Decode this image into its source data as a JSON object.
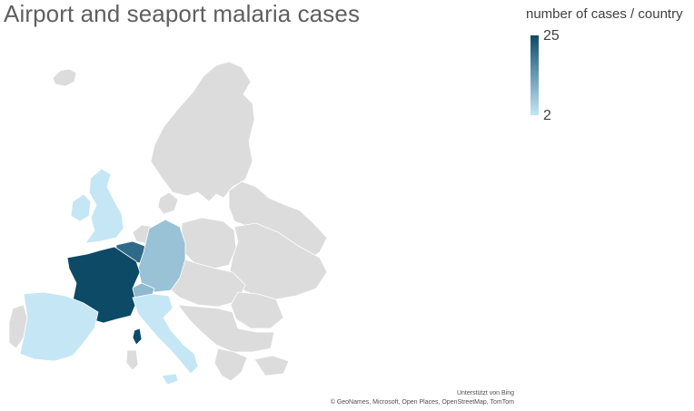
{
  "title": "Airport and seaport malaria cases",
  "legend": {
    "title": "number of cases / country",
    "max": "25",
    "min": "2",
    "color_max": "#0d4a66",
    "color_min": "#c5e6f5",
    "no_data_color": "#dcdcdc"
  },
  "credits": {
    "powered_by": "Unterstützt von Bing",
    "attribution": "© GeoNames, Microsoft, Open Places, OpenStreetMap, TomTom"
  },
  "highlighted_regions": [
    {
      "name": "France",
      "level": "max",
      "color": "#0d4a66"
    },
    {
      "name": "Belgium",
      "level": "high",
      "color": "#2f6a88"
    },
    {
      "name": "Germany",
      "level": "medium",
      "color": "#99c2d6"
    },
    {
      "name": "Switzerland",
      "level": "medium",
      "color": "#8fb9cf"
    },
    {
      "name": "United Kingdom",
      "level": "low",
      "color": "#c5e6f5"
    },
    {
      "name": "Ireland",
      "level": "low",
      "color": "#c5e6f5"
    },
    {
      "name": "Spain",
      "level": "low",
      "color": "#c5e6f5"
    },
    {
      "name": "Italy",
      "level": "low",
      "color": "#c5e6f5"
    }
  ]
}
